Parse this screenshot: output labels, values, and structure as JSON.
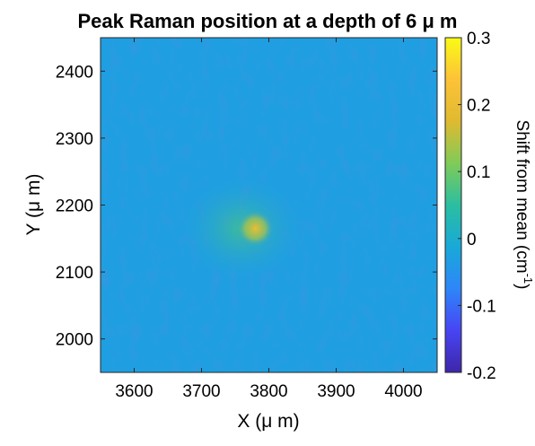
{
  "chart_data": {
    "type": "heatmap",
    "title": "Peak Raman position at a depth of 6 μ m",
    "xlabel": "X (μ m)",
    "ylabel": "Y (μ m)",
    "colorbar_label": "Shift from mean (cm",
    "colorbar_label_sup": "-1",
    "colorbar_label_end": ")",
    "xlim": [
      3550,
      4050
    ],
    "ylim": [
      1950,
      2450
    ],
    "clim": [
      -0.2,
      0.3
    ],
    "x_ticks": [
      3600,
      3700,
      3800,
      3900,
      4000
    ],
    "y_ticks": [
      2000,
      2100,
      2200,
      2300,
      2400
    ],
    "c_ticks": [
      -0.2,
      -0.1,
      0,
      0.1,
      0.2,
      0.3
    ],
    "background_value": -0.03,
    "features": [
      {
        "x": 3780,
        "y": 2165,
        "value": 0.2,
        "spread": 28
      },
      {
        "x": 3760,
        "y": 2165,
        "value": 0.07,
        "spread": 95
      }
    ],
    "colormap": [
      "#3e26a8",
      "#4745f3",
      "#2e86f9",
      "#19a9d8",
      "#2bbea0",
      "#80cb58",
      "#dfba30",
      "#fdc238",
      "#f9fb15"
    ],
    "grid": false
  }
}
